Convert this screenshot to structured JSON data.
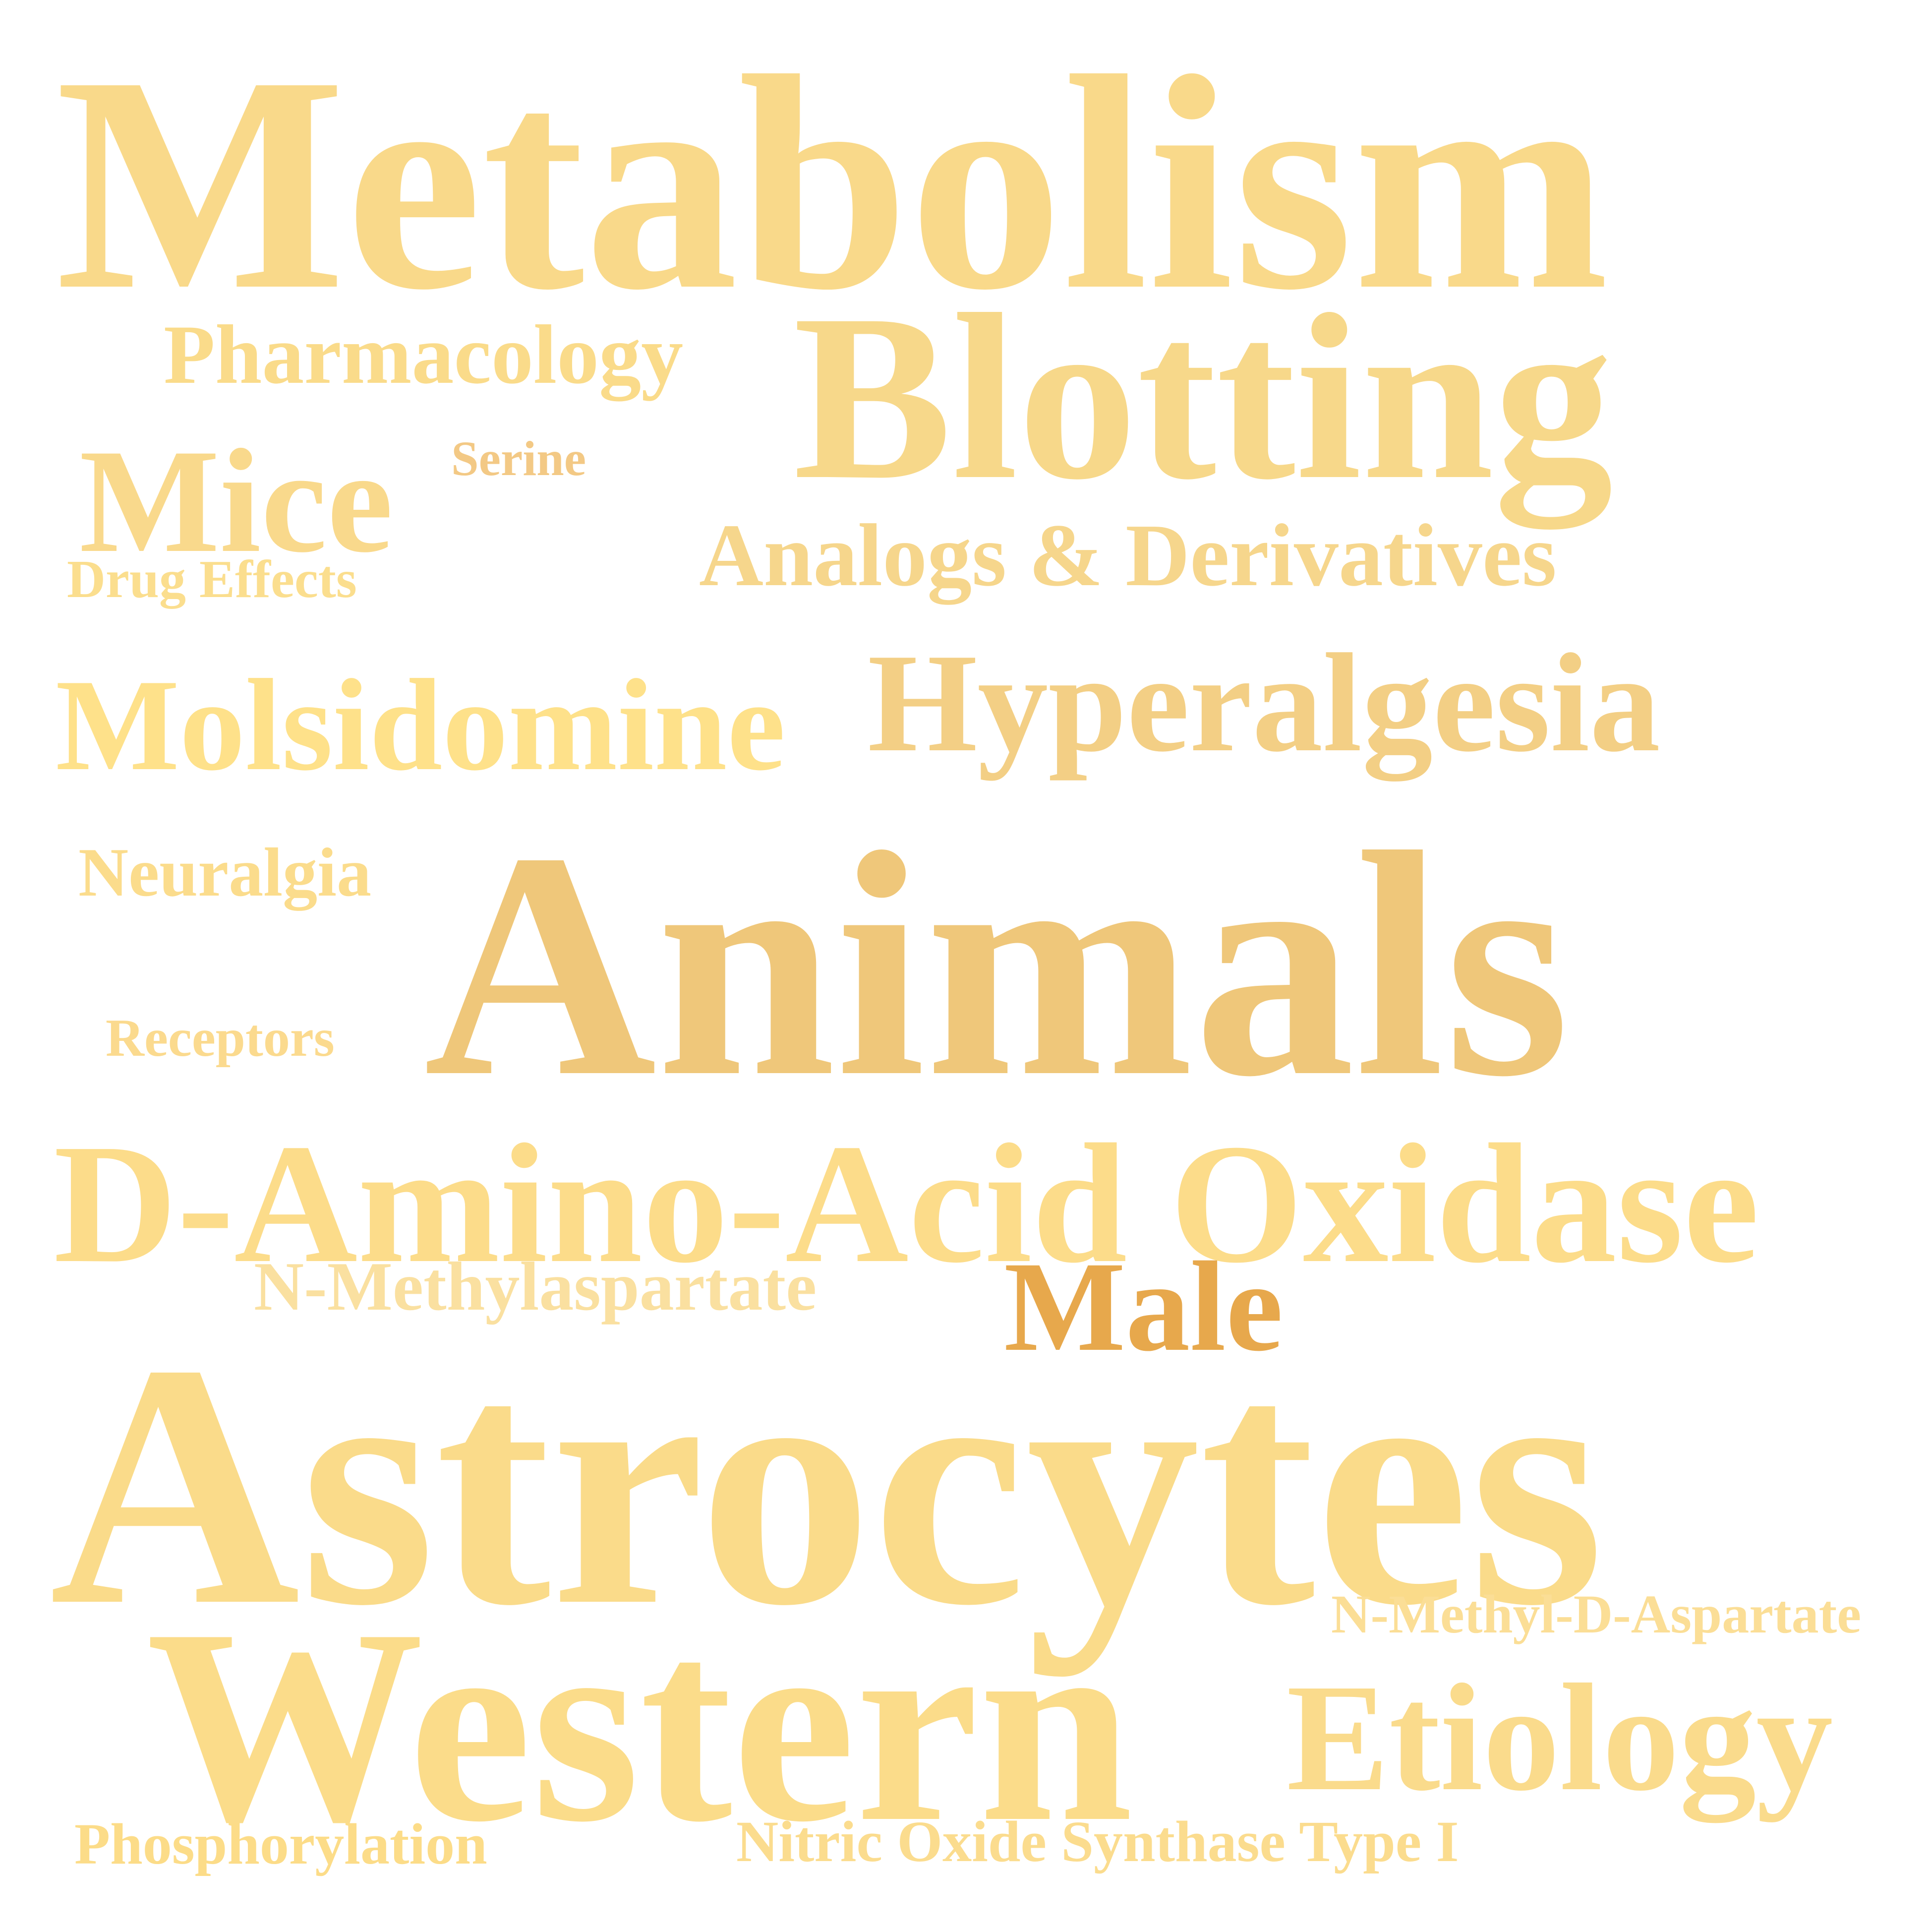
{
  "words": [
    {
      "key": "metabolism",
      "text": "Metabolism",
      "color": "#F9D98A"
    },
    {
      "key": "pharmacology",
      "text": "Pharmacology",
      "color": "#FADB8A"
    },
    {
      "key": "blotting",
      "text": "Blotting",
      "color": "#F7D88A"
    },
    {
      "key": "mice",
      "text": "Mice",
      "color": "#F9D98C"
    },
    {
      "key": "serine",
      "text": "Serine",
      "color": "#F3C985"
    },
    {
      "key": "drug_effects",
      "text": "Drug Effects",
      "color": "#FBDE8E"
    },
    {
      "key": "analogs",
      "text": "Analogs & Derivatives",
      "color": "#F6D68C"
    },
    {
      "key": "molsidomine",
      "text": "Molsidomine",
      "color": "#FEE18A"
    },
    {
      "key": "hyperalgesia",
      "text": "Hyperalgesia",
      "color": "#F3CF85"
    },
    {
      "key": "neuralgia",
      "text": "Neuralgia",
      "color": "#FBDC8C"
    },
    {
      "key": "animals",
      "text": "Animals",
      "color": "#EFC77A"
    },
    {
      "key": "receptors",
      "text": "Receptors",
      "color": "#FBDA8E"
    },
    {
      "key": "daao",
      "text": "D-Amino-Acid Oxidase",
      "color": "#FCDC8A"
    },
    {
      "key": "nmethylaspartate",
      "text": "N-Methylaspartate",
      "color": "#FAE0A0"
    },
    {
      "key": "male",
      "text": "Male",
      "color": "#E7A84C"
    },
    {
      "key": "astrocytes",
      "text": "Astrocytes",
      "color": "#FADB8A"
    },
    {
      "key": "nmda",
      "text": "N-Methyl-D-Aspartate",
      "color": "#FBDE96"
    },
    {
      "key": "western",
      "text": "Western",
      "color": "#FBDC8A"
    },
    {
      "key": "etiology",
      "text": "Etiology",
      "color": "#FADB8C"
    },
    {
      "key": "phosphorylation",
      "text": "Phosphorylation",
      "color": "#FCDC88"
    },
    {
      "key": "nos1",
      "text": "Nitric Oxide Synthase Type I",
      "color": "#FBDC8E"
    }
  ]
}
